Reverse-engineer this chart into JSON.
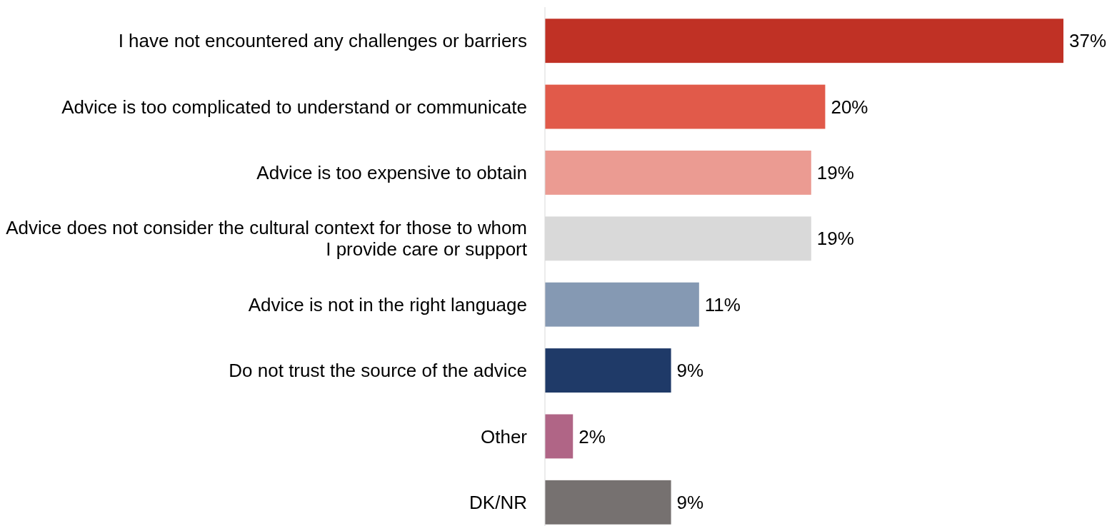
{
  "chart_data": {
    "type": "bar",
    "orientation": "horizontal",
    "categories": [
      "I have not encountered any challenges or barriers",
      "Advice is too complicated to understand or communicate",
      "Advice is too expensive to obtain",
      "Advice does not consider the cultural context for those to whom I provide care or support",
      "Advice is not in the right language",
      "Do not trust the source of the advice",
      "Other",
      "DK/NR"
    ],
    "values": [
      37,
      20,
      19,
      19,
      11,
      9,
      2,
      9
    ],
    "value_labels": [
      "37%",
      "20%",
      "19%",
      "19%",
      "11%",
      "9%",
      "2%",
      "9%"
    ],
    "colors": [
      "#c03125",
      "#e15a4a",
      "#eb9b92",
      "#d9d9d9",
      "#8599b3",
      "#1f3a68",
      "#b06586",
      "#767170"
    ],
    "data_labels": false
  }
}
